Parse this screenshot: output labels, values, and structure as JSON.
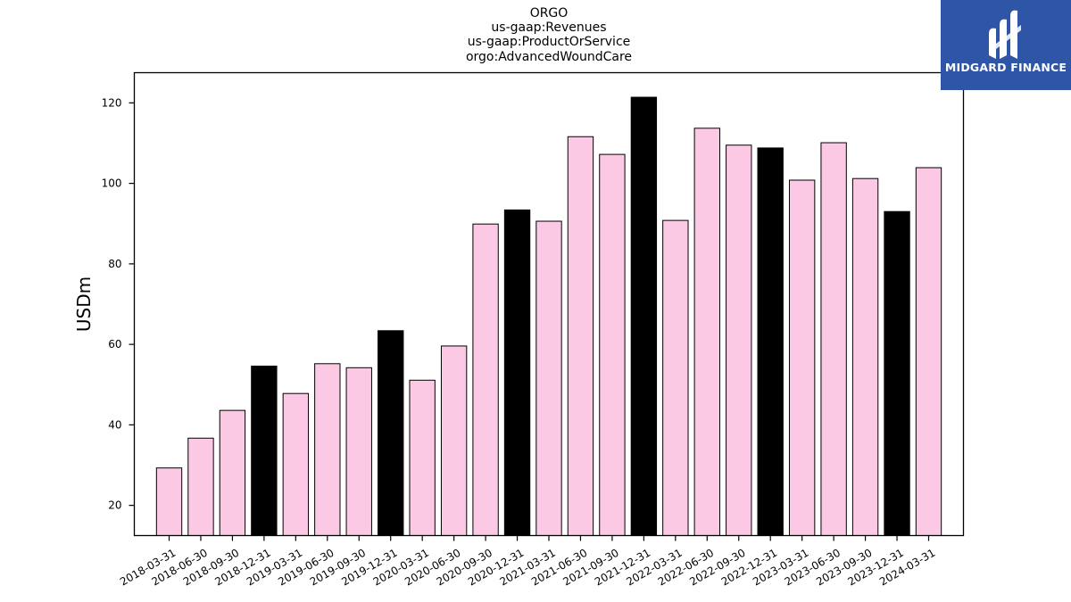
{
  "chart_data": {
    "type": "bar",
    "title_lines": [
      "ORGO",
      "us-gaap:Revenues",
      "us-gaap:ProductOrService",
      "orgo:AdvancedWoundCare"
    ],
    "xlabel": "",
    "ylabel": "USDm",
    "ylim": [
      12.5,
      127.5
    ],
    "yticks": [
      20,
      40,
      60,
      80,
      100,
      120
    ],
    "grid": false,
    "categories": [
      "2018-03-31",
      "2018-06-30",
      "2018-09-30",
      "2018-12-31",
      "2019-03-31",
      "2019-06-30",
      "2019-09-30",
      "2019-12-31",
      "2020-03-31",
      "2020-06-30",
      "2020-09-30",
      "2020-12-31",
      "2021-03-31",
      "2021-06-30",
      "2021-09-30",
      "2021-12-31",
      "2022-03-31",
      "2022-06-30",
      "2022-09-30",
      "2022-12-31",
      "2023-03-31",
      "2023-06-30",
      "2023-09-30",
      "2023-12-31",
      "2024-03-31"
    ],
    "values": [
      29.3,
      36.7,
      43.6,
      54.6,
      47.8,
      55.2,
      54.2,
      63.4,
      51.1,
      59.6,
      89.9,
      93.4,
      90.6,
      111.6,
      107.2,
      121.4,
      90.8,
      113.7,
      109.5,
      108.8,
      100.8,
      110.1,
      101.2,
      93.0,
      103.9
    ],
    "highlight_indices": [
      3,
      7,
      11,
      15,
      19,
      23
    ],
    "colors": {
      "bar": "#fcc9e4",
      "highlight": "#000000",
      "edge": "#000000"
    }
  },
  "logo": {
    "text": "MIDGARD FINANCE",
    "background": "#2f56a6"
  }
}
